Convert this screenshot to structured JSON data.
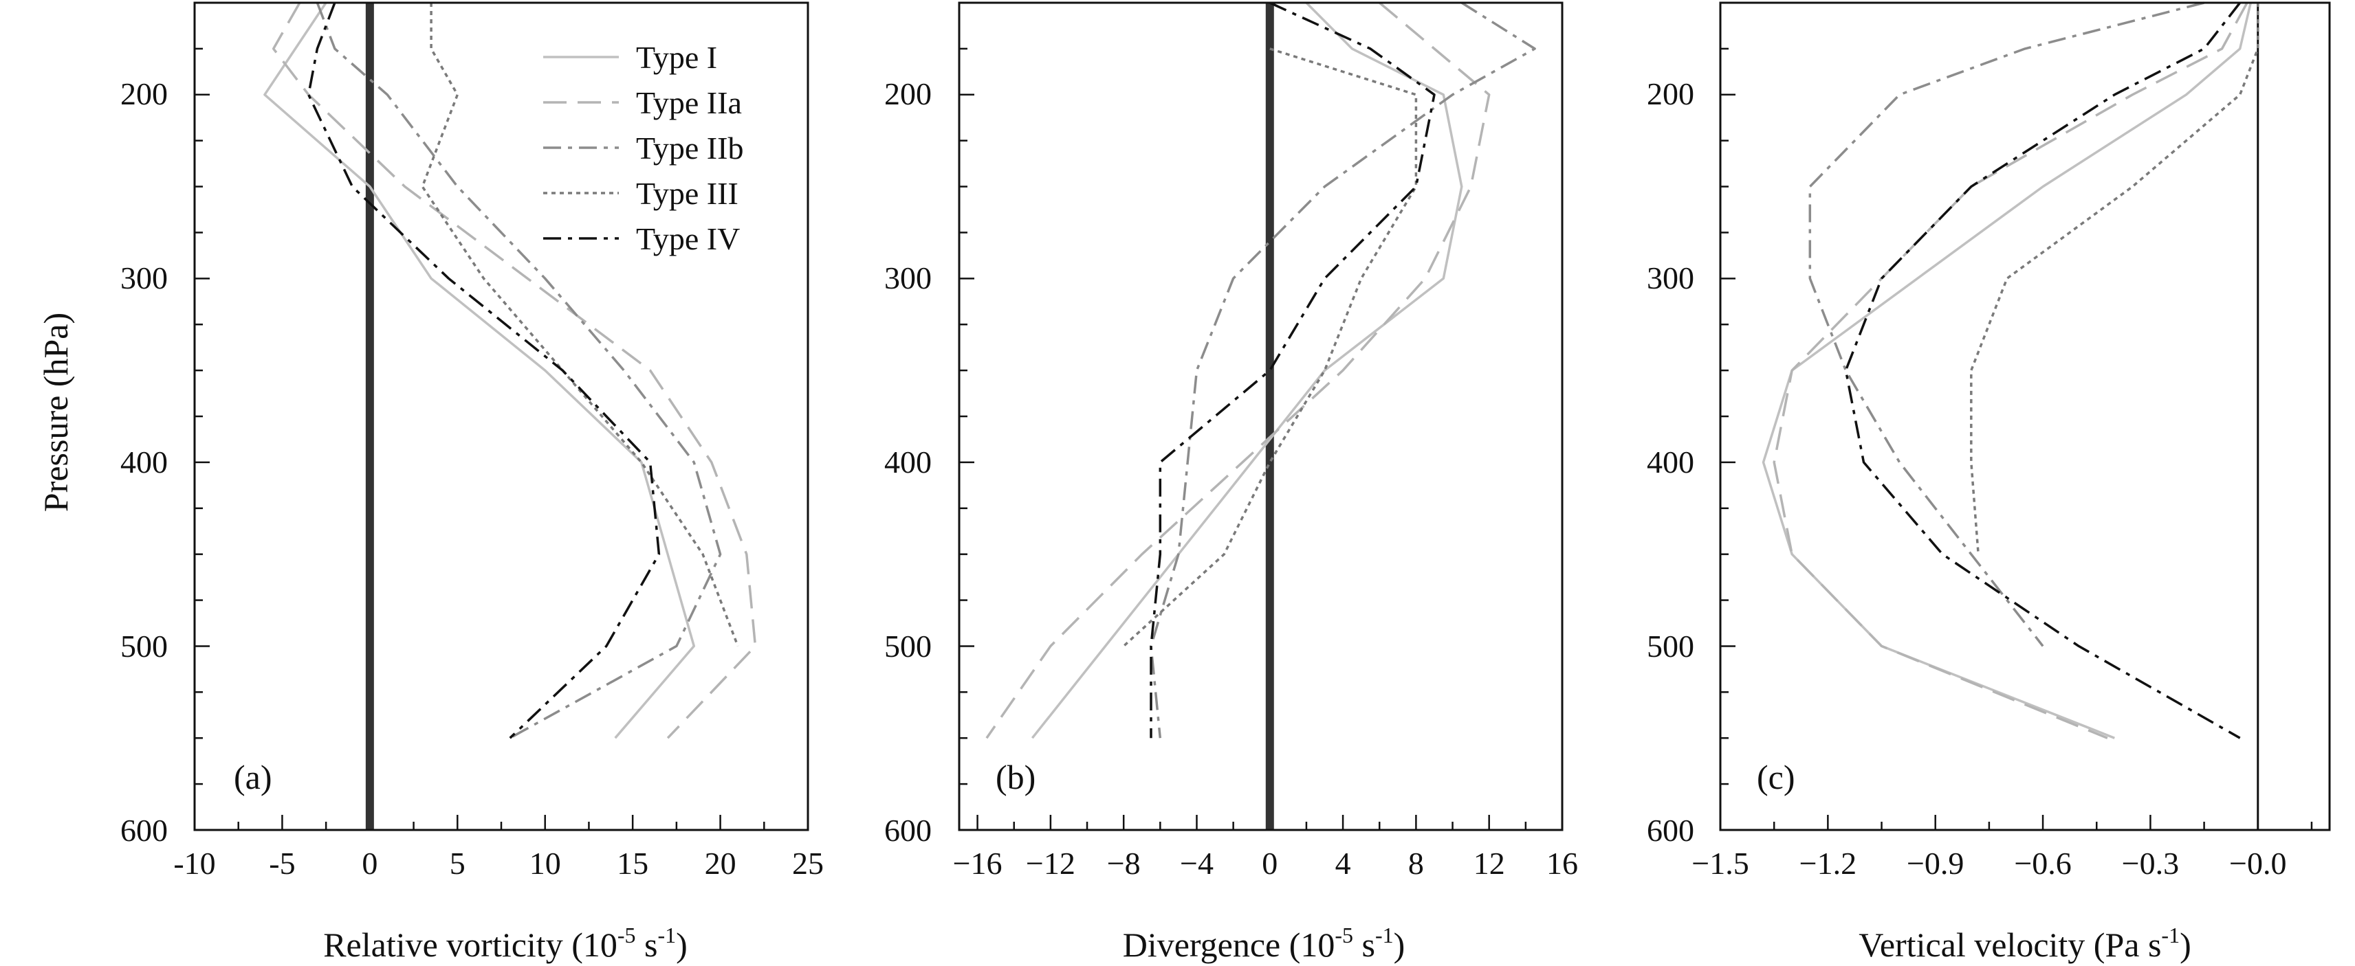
{
  "figure": {
    "ylabel": "Pressure (hPa)",
    "y_ticks": [
      200,
      300,
      400,
      500,
      600
    ],
    "legend_entries": [
      "Type I",
      "Type IIa",
      "Type IIb",
      "Type III",
      "Type IV"
    ],
    "style": {
      "line_width_note": "thin lines",
      "series_styles": {
        "Type I": {
          "color": "#c0c0c0",
          "dash": "solid"
        },
        "Type IIa": {
          "color": "#b4b4b4",
          "dash": "long-dash"
        },
        "Type IIb": {
          "color": "#8c8c8c",
          "dash": "dash-dot"
        },
        "Type III": {
          "color": "#7a7a7a",
          "dash": "dotted"
        },
        "Type IV": {
          "color": "#111111",
          "dash": "dash-dot"
        }
      },
      "zero_line_color": "#333333"
    }
  },
  "chart_data": [
    {
      "type": "line",
      "panel": "(a)",
      "xlabel_main": "Relative vorticity (10",
      "xlabel_sup": "-5",
      "xlabel_mid": " s",
      "xlabel_sup2": "-1",
      "xlabel_end": ")",
      "xlim": [
        -10,
        25
      ],
      "ylim": [
        150,
        600
      ],
      "y_inverted": true,
      "x_ticks": [
        -10,
        -5,
        0,
        5,
        10,
        15,
        20,
        25
      ],
      "x_tick_labels": [
        "-10",
        "-5",
        "0",
        "5",
        "10",
        "15",
        "20",
        "25"
      ],
      "zero_line": "thick",
      "legend_position": "top-right",
      "series": [
        {
          "name": "Type I",
          "points": [
            [
              -2.5,
              150
            ],
            [
              -6,
              200
            ],
            [
              0,
              250
            ],
            [
              3.5,
              300
            ],
            [
              10,
              350
            ],
            [
              15.5,
              400
            ],
            [
              17,
              450
            ],
            [
              18.5,
              500
            ],
            [
              14,
              550
            ]
          ]
        },
        {
          "name": "Type IIa",
          "points": [
            [
              -4,
              150
            ],
            [
              -5.5,
              175
            ],
            [
              -3.5,
              200
            ],
            [
              2,
              250
            ],
            [
              9,
              300
            ],
            [
              16,
              350
            ],
            [
              19.5,
              400
            ],
            [
              21.5,
              450
            ],
            [
              22,
              500
            ],
            [
              17,
              550
            ]
          ]
        },
        {
          "name": "Type IIb",
          "points": [
            [
              -3,
              150
            ],
            [
              -2,
              175
            ],
            [
              1,
              200
            ],
            [
              5,
              250
            ],
            [
              10,
              300
            ],
            [
              14.5,
              350
            ],
            [
              18.5,
              400
            ],
            [
              20,
              450
            ],
            [
              17.5,
              500
            ],
            [
              8,
              550
            ]
          ]
        },
        {
          "name": "Type III",
          "points": [
            [
              3.5,
              150
            ],
            [
              3.5,
              175
            ],
            [
              5,
              200
            ],
            [
              3,
              250
            ],
            [
              6.5,
              300
            ],
            [
              11,
              350
            ],
            [
              15.5,
              400
            ],
            [
              19,
              450
            ],
            [
              21,
              500
            ]
          ]
        },
        {
          "name": "Type IV",
          "points": [
            [
              -2,
              150
            ],
            [
              -3,
              175
            ],
            [
              -3.5,
              200
            ],
            [
              -1,
              250
            ],
            [
              4.5,
              300
            ],
            [
              11,
              350
            ],
            [
              16,
              400
            ],
            [
              16.5,
              450
            ],
            [
              13.5,
              500
            ],
            [
              8,
              550
            ]
          ]
        }
      ]
    },
    {
      "type": "line",
      "panel": "(b)",
      "xlabel_main": "Divergence (10",
      "xlabel_sup": "-5",
      "xlabel_mid": " s",
      "xlabel_sup2": "-1",
      "xlabel_end": ")",
      "xlim": [
        -17,
        16
      ],
      "ylim": [
        150,
        600
      ],
      "y_inverted": true,
      "x_ticks": [
        -16,
        -12,
        -8,
        -4,
        0,
        4,
        8,
        12,
        16
      ],
      "x_tick_labels": [
        "−16",
        "−12",
        "−8",
        "−4",
        "0",
        "4",
        "8",
        "12",
        "16"
      ],
      "zero_line": "thick",
      "series": [
        {
          "name": "Type I",
          "points": [
            [
              2,
              150
            ],
            [
              4.5,
              175
            ],
            [
              9.5,
              200
            ],
            [
              10.5,
              250
            ],
            [
              9.5,
              300
            ],
            [
              3,
              350
            ],
            [
              -1,
              400
            ],
            [
              -5,
              450
            ],
            [
              -9,
              500
            ],
            [
              -13,
              550
            ]
          ]
        },
        {
          "name": "Type IIa",
          "points": [
            [
              6,
              150
            ],
            [
              9,
              175
            ],
            [
              12,
              200
            ],
            [
              11,
              250
            ],
            [
              8.5,
              300
            ],
            [
              4,
              350
            ],
            [
              -1.5,
              400
            ],
            [
              -7,
              450
            ],
            [
              -12,
              500
            ],
            [
              -15.5,
              550
            ]
          ]
        },
        {
          "name": "Type IIb",
          "points": [
            [
              10.5,
              150
            ],
            [
              14.5,
              175
            ],
            [
              10,
              200
            ],
            [
              3,
              250
            ],
            [
              -2,
              300
            ],
            [
              -4,
              350
            ],
            [
              -4.5,
              400
            ],
            [
              -5,
              450
            ],
            [
              -6.5,
              500
            ],
            [
              -6,
              550
            ]
          ]
        },
        {
          "name": "Type III",
          "points": [
            [
              0,
              175
            ],
            [
              8,
              200
            ],
            [
              8,
              250
            ],
            [
              5,
              300
            ],
            [
              3,
              350
            ],
            [
              0,
              400
            ],
            [
              -2.5,
              450
            ],
            [
              -8,
              500
            ]
          ]
        },
        {
          "name": "Type IV",
          "points": [
            [
              0,
              150
            ],
            [
              5.5,
              175
            ],
            [
              9,
              200
            ],
            [
              8,
              250
            ],
            [
              3,
              300
            ],
            [
              0,
              350
            ],
            [
              -6,
              400
            ],
            [
              -6,
              450
            ],
            [
              -6.5,
              500
            ],
            [
              -6.5,
              550
            ]
          ]
        }
      ]
    },
    {
      "type": "line",
      "panel": "(c)",
      "xlabel_main": "Vertical velocity (Pa s",
      "xlabel_sup": "-1",
      "xlabel_end": ")",
      "xlim": [
        -1.5,
        0.2
      ],
      "ylim": [
        150,
        600
      ],
      "y_inverted": true,
      "x_ticks": [
        -1.5,
        -1.2,
        -0.9,
        -0.6,
        -0.3,
        0.0
      ],
      "x_tick_labels": [
        "−1.5",
        "−1.2",
        "−0.9",
        "−0.6",
        "−0.3",
        "−0.0"
      ],
      "zero_line": "thin",
      "series": [
        {
          "name": "Type I",
          "points": [
            [
              -0.02,
              150
            ],
            [
              -0.05,
              175
            ],
            [
              -0.2,
              200
            ],
            [
              -0.6,
              250
            ],
            [
              -0.95,
              300
            ],
            [
              -1.3,
              350
            ],
            [
              -1.38,
              400
            ],
            [
              -1.3,
              450
            ],
            [
              -1.05,
              500
            ],
            [
              -0.4,
              550
            ]
          ]
        },
        {
          "name": "Type IIa",
          "points": [
            [
              -0.03,
              150
            ],
            [
              -0.1,
              175
            ],
            [
              -0.35,
              200
            ],
            [
              -0.8,
              250
            ],
            [
              -1.05,
              300
            ],
            [
              -1.3,
              350
            ],
            [
              -1.35,
              400
            ],
            [
              -1.3,
              450
            ],
            [
              -1.05,
              500
            ],
            [
              -0.42,
              550
            ]
          ]
        },
        {
          "name": "Type IIb",
          "points": [
            [
              -0.15,
              150
            ],
            [
              -0.65,
              175
            ],
            [
              -1.0,
              200
            ],
            [
              -1.25,
              250
            ],
            [
              -1.25,
              300
            ],
            [
              -1.15,
              350
            ],
            [
              -1.0,
              400
            ],
            [
              -0.8,
              450
            ],
            [
              -0.6,
              500
            ]
          ]
        },
        {
          "name": "Type III",
          "points": [
            [
              0.0,
              150
            ],
            [
              0.0,
              175
            ],
            [
              -0.05,
              200
            ],
            [
              -0.35,
              250
            ],
            [
              -0.7,
              300
            ],
            [
              -0.8,
              350
            ],
            [
              -0.8,
              400
            ],
            [
              -0.78,
              450
            ]
          ]
        },
        {
          "name": "Type IV",
          "points": [
            [
              -0.05,
              150
            ],
            [
              -0.15,
              175
            ],
            [
              -0.4,
              200
            ],
            [
              -0.8,
              250
            ],
            [
              -1.05,
              300
            ],
            [
              -1.15,
              350
            ],
            [
              -1.1,
              400
            ],
            [
              -0.88,
              450
            ],
            [
              -0.5,
              500
            ],
            [
              -0.05,
              550
            ]
          ]
        }
      ]
    }
  ]
}
